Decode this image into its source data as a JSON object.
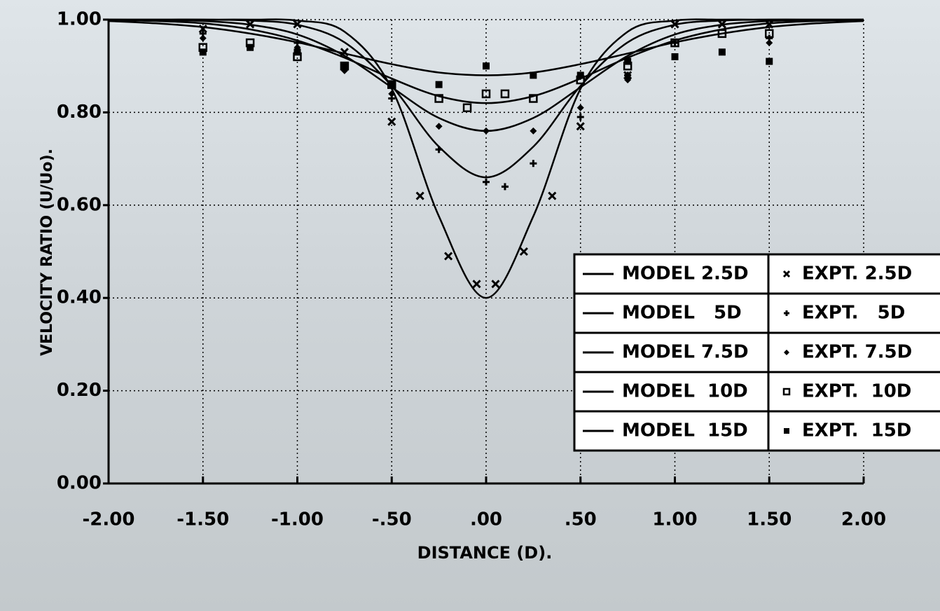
{
  "chart_data": {
    "type": "line",
    "xlabel": "DISTANCE (D).",
    "ylabel": "VELOCITY RATIO (U/Uo).",
    "xlim": [
      -2,
      2
    ],
    "ylim": [
      0,
      1
    ],
    "xticks": [
      {
        "value": -2,
        "label": "-2.00"
      },
      {
        "value": -1.5,
        "label": "-1.50"
      },
      {
        "value": -1,
        "label": "-1.00"
      },
      {
        "value": -0.5,
        "label": "-.50"
      },
      {
        "value": 0,
        "label": ".00"
      },
      {
        "value": 0.5,
        "label": ".50"
      },
      {
        "value": 1,
        "label": "1.00"
      },
      {
        "value": 1.5,
        "label": "1.50"
      },
      {
        "value": 2,
        "label": "2.00"
      }
    ],
    "yticks": [
      {
        "value": 0,
        "label": "0.00"
      },
      {
        "value": 0.2,
        "label": "0.20"
      },
      {
        "value": 0.4,
        "label": "0.40"
      },
      {
        "value": 0.6,
        "label": "0.60"
      },
      {
        "value": 0.8,
        "label": "0.80"
      },
      {
        "value": 1,
        "label": "1.00"
      }
    ],
    "grid": true,
    "legend": "right",
    "x": [
      -2,
      -1.75,
      -1.5,
      -1.25,
      -1,
      -0.75,
      -0.5,
      -0.25,
      0,
      0.25,
      0.5,
      0.75,
      1,
      1.25,
      1.5,
      1.75,
      2
    ],
    "series": [
      {
        "name": "MODEL 2.5D",
        "color": "#000000",
        "mode": "line",
        "values": [
          1,
          1,
          1,
          1,
          0.998,
          0.974,
          0.851,
          0.576,
          0.4,
          0.576,
          0.851,
          0.974,
          0.998,
          1,
          1,
          1,
          1
        ]
      },
      {
        "name": "MODEL   5D",
        "color": "#000000",
        "mode": "line",
        "values": [
          1,
          1,
          1,
          0.998,
          0.989,
          0.951,
          0.857,
          0.726,
          0.66,
          0.726,
          0.857,
          0.951,
          0.989,
          0.998,
          1,
          1,
          1
        ]
      },
      {
        "name": "MODEL 7.5D",
        "color": "#000000",
        "mode": "line",
        "values": [
          1,
          0.999,
          0.997,
          0.989,
          0.968,
          0.922,
          0.854,
          0.788,
          0.76,
          0.788,
          0.854,
          0.922,
          0.968,
          0.989,
          0.997,
          0.999,
          1
        ]
      },
      {
        "name": "MODEL  10D",
        "color": "#000000",
        "mode": "line",
        "values": [
          0.999,
          0.997,
          0.992,
          0.979,
          0.955,
          0.918,
          0.873,
          0.835,
          0.82,
          0.835,
          0.873,
          0.918,
          0.955,
          0.979,
          0.992,
          0.997,
          0.999
        ]
      },
      {
        "name": "MODEL  15D",
        "color": "#000000",
        "mode": "line",
        "values": [
          0.997,
          0.992,
          0.984,
          0.97,
          0.951,
          0.927,
          0.904,
          0.886,
          0.88,
          0.886,
          0.904,
          0.927,
          0.951,
          0.97,
          0.984,
          0.992,
          0.997
        ]
      },
      {
        "name": "EXPT. 2.5D",
        "color": "#000000",
        "mode": "markers",
        "marker": "x",
        "x": [
          -1.5,
          -1.25,
          -1,
          -0.75,
          -0.5,
          -0.35,
          -0.2,
          -0.05,
          0.05,
          0.2,
          0.35,
          0.5,
          0.75,
          1,
          1.25,
          1.5
        ],
        "values": [
          0.98,
          0.99,
          0.99,
          0.93,
          0.78,
          0.62,
          0.49,
          0.43,
          0.43,
          0.5,
          0.62,
          0.77,
          0.88,
          0.99,
          0.99,
          0.99
        ]
      },
      {
        "name": "EXPT.   5D",
        "color": "#000000",
        "mode": "markers",
        "marker": "plus",
        "x": [
          -1.5,
          -1,
          -0.75,
          -0.5,
          -0.25,
          0,
          0.1,
          0.25,
          0.5,
          0.75,
          1,
          1.5
        ],
        "values": [
          0.97,
          0.95,
          0.9,
          0.83,
          0.72,
          0.65,
          0.64,
          0.69,
          0.79,
          0.88,
          0.95,
          0.96
        ]
      },
      {
        "name": "EXPT. 7.5D",
        "color": "#000000",
        "mode": "markers",
        "marker": "diamond",
        "x": [
          -1.5,
          -1,
          -0.75,
          -0.5,
          -0.25,
          0,
          0.25,
          0.5,
          0.75,
          1,
          1.5
        ],
        "values": [
          0.96,
          0.94,
          0.89,
          0.84,
          0.77,
          0.76,
          0.76,
          0.81,
          0.87,
          0.92,
          0.95
        ]
      },
      {
        "name": "EXPT.  10D",
        "color": "#000000",
        "mode": "markers",
        "marker": "square",
        "x": [
          -1.5,
          -1.25,
          -1,
          -0.75,
          -0.5,
          -0.25,
          -0.1,
          0,
          0.1,
          0.25,
          0.5,
          0.75,
          1,
          1.25,
          1.5
        ],
        "values": [
          0.94,
          0.95,
          0.92,
          0.9,
          0.86,
          0.83,
          0.81,
          0.84,
          0.84,
          0.83,
          0.87,
          0.9,
          0.95,
          0.97,
          0.97
        ]
      },
      {
        "name": "EXPT.  15D",
        "color": "#000000",
        "mode": "markers",
        "marker": "filled-square",
        "x": [
          -1.5,
          -1.25,
          -1,
          -0.75,
          -0.5,
          -0.25,
          0,
          0.25,
          0.5,
          0.75,
          1,
          1.25,
          1.5
        ],
        "values": [
          0.93,
          0.94,
          0.93,
          0.9,
          0.86,
          0.86,
          0.9,
          0.88,
          0.88,
          0.91,
          0.92,
          0.93,
          0.91
        ]
      }
    ]
  }
}
